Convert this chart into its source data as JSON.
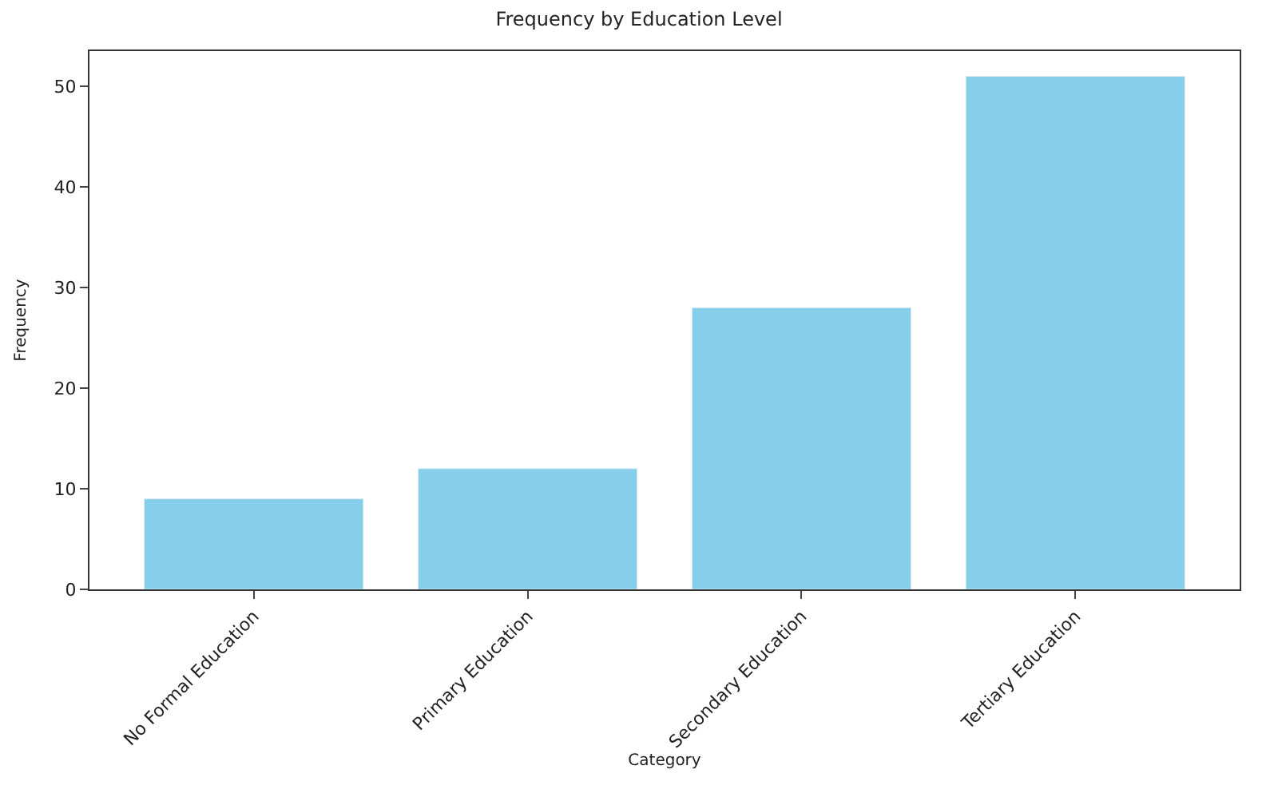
{
  "chart_data": {
    "type": "bar",
    "title": "Frequency by Education Level",
    "xlabel": "Category",
    "ylabel": "Frequency",
    "categories": [
      "No Formal Education",
      "Primary Education",
      "Secondary Education",
      "Tertiary Education"
    ],
    "values": [
      9,
      12,
      28,
      51
    ],
    "color": "#87ceeb",
    "ylim": [
      0,
      53.5
    ],
    "yticks": [
      0,
      10,
      20,
      30,
      40,
      50
    ]
  }
}
